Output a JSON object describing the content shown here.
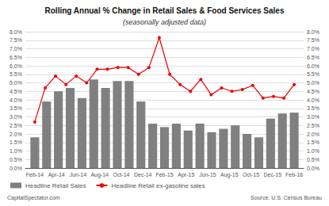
{
  "chart_data": {
    "type": "bar",
    "title": "Rolling Annual % Change in Retail Sales & Food Services Sales",
    "subtitle": "(seasonally adjusted data)",
    "annotations": [
      "CapitalSpectator.com",
      "Source: U.S. Census Bureau"
    ],
    "series": [
      {
        "name": "Headline Retail Sales",
        "type": "bar",
        "color": "#808080",
        "x": [
          0,
          1,
          2,
          3,
          4,
          5,
          6,
          7,
          8,
          9,
          10,
          11,
          12,
          13,
          14,
          15,
          16,
          17,
          18,
          19,
          20,
          21,
          22
        ],
        "values": [
          1.8,
          3.9,
          4.5,
          4.7,
          4.1,
          5.2,
          4.7,
          5.1,
          5.1,
          3.9,
          2.6,
          2.4,
          2.6,
          2.2,
          2.6,
          2.1,
          2.3,
          2.5,
          2.0,
          1.8,
          2.9,
          3.2,
          3.25
        ]
      },
      {
        "name": "Headline Retail ex-gasoline sales",
        "type": "line",
        "color": "#ee0000",
        "marker": "circle",
        "x": [
          0,
          0.88,
          1.76,
          2.64,
          3.52,
          4.4,
          5.28,
          6.16,
          7.04,
          7.92,
          8.8,
          9.68,
          10.56,
          11.44,
          12.32,
          13.2,
          14.08,
          14.96,
          15.84,
          16.72,
          17.6,
          18.48,
          19.36,
          20.24,
          21.12,
          22
        ],
        "values": [
          2.7,
          4.7,
          5.4,
          4.9,
          5.4,
          5.0,
          5.8,
          5.8,
          5.9,
          5.9,
          5.5,
          5.9,
          7.65,
          5.5,
          4.9,
          4.5,
          5.2,
          4.3,
          4.7,
          4.5,
          4.6,
          4.85,
          4.1,
          4.2,
          4.1,
          4.9
        ]
      }
    ],
    "xlim": [
      -0.8,
      22.8
    ],
    "xticks": [
      {
        "value": 0,
        "label": "Feb-14"
      },
      {
        "value": 1.8333333333333333,
        "label": "Apr-14"
      },
      {
        "value": 3.6666666666666665,
        "label": "Jun-14"
      },
      {
        "value": 5.5,
        "label": "Aug-14"
      },
      {
        "value": 7.333333333333333,
        "label": "Oct-14"
      },
      {
        "value": 9.166666666666666,
        "label": "Dec-14"
      },
      {
        "value": 11,
        "label": "Feb-15"
      },
      {
        "value": 12.833333333333334,
        "label": "Apr-15"
      },
      {
        "value": 14.666666666666666,
        "label": "Jun-15"
      },
      {
        "value": 16.5,
        "label": "Aug-15"
      },
      {
        "value": 18.333333333333332,
        "label": "Oct-15"
      },
      {
        "value": 20.166666666666668,
        "label": "Dec-15"
      },
      {
        "value": 22,
        "label": "Feb-16"
      }
    ],
    "ylim": [
      0.0,
      8.0
    ],
    "yticks": [
      {
        "value": 0,
        "label": "0.0%"
      },
      {
        "value": 0.5,
        "label": "0.5%"
      },
      {
        "value": 1,
        "label": "1.0%"
      },
      {
        "value": 1.5,
        "label": "1.5%"
      },
      {
        "value": 2,
        "label": "2.0%"
      },
      {
        "value": 2.5,
        "label": "2.5%"
      },
      {
        "value": 3,
        "label": "3.0%"
      },
      {
        "value": 3.5,
        "label": "3.5%"
      },
      {
        "value": 4,
        "label": "4.0%"
      },
      {
        "value": 4.5,
        "label": "4.5%"
      },
      {
        "value": 5,
        "label": "5.0%"
      },
      {
        "value": 5.5,
        "label": "5.5%"
      },
      {
        "value": 6,
        "label": "6.0%"
      },
      {
        "value": 6.5,
        "label": "6.5%"
      },
      {
        "value": 7,
        "label": "7.0%"
      },
      {
        "value": 7.5,
        "label": "7.5%"
      },
      {
        "value": 8,
        "label": "8.0%"
      }
    ],
    "y2lim": [
      0.0,
      8.0
    ],
    "y2ticks": [
      {
        "value": 0,
        "label": "0.0%"
      },
      {
        "value": 0.5,
        "label": "0.5%"
      },
      {
        "value": 1,
        "label": "1.0%"
      },
      {
        "value": 1.5,
        "label": "1.5%"
      },
      {
        "value": 2,
        "label": "2.0%"
      },
      {
        "value": 2.5,
        "label": "2.5%"
      },
      {
        "value": 3,
        "label": "3.0%"
      },
      {
        "value": 3.5,
        "label": "3.5%"
      },
      {
        "value": 4,
        "label": "4.0%"
      },
      {
        "value": 4.5,
        "label": "4.5%"
      },
      {
        "value": 5,
        "label": "5.0%"
      },
      {
        "value": 5.5,
        "label": "5.5%"
      },
      {
        "value": 6,
        "label": "6.0%"
      },
      {
        "value": 6.5,
        "label": "6.5%"
      },
      {
        "value": 7,
        "label": "7.0%"
      },
      {
        "value": 7.5,
        "label": "7.5%"
      },
      {
        "value": 8,
        "label": "8.0%"
      }
    ],
    "grid": true,
    "legend": "lower left"
  }
}
